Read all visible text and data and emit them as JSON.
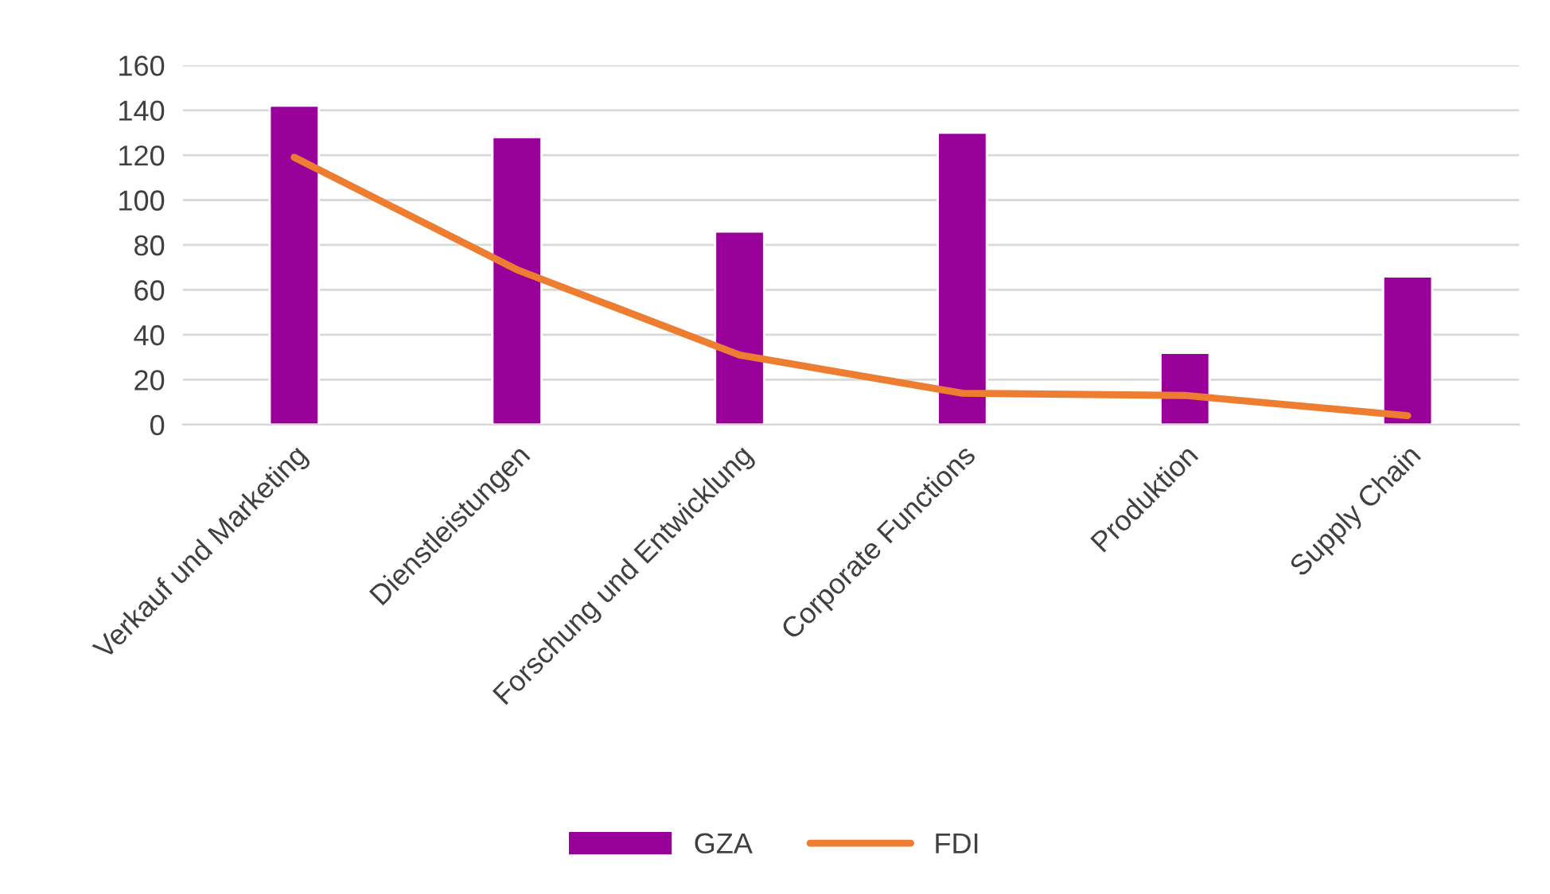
{
  "chart_data": {
    "type": "bar",
    "categories": [
      "Verkauf und Marketing",
      "Dienstleistungen",
      "Forschung und Entwicklung",
      "Corporate Functions",
      "Produktion",
      "Supply Chain"
    ],
    "series": [
      {
        "name": "GZA",
        "color": "#990099",
        "values": [
          142,
          128,
          86,
          130,
          32,
          66
        ]
      },
      {
        "name": "FDI",
        "type": "line",
        "color": "#ed7d31",
        "values": [
          119,
          69,
          31,
          14,
          13,
          4
        ]
      }
    ],
    "ylim": [
      0,
      160
    ],
    "yticks": [
      0,
      20,
      40,
      60,
      80,
      100,
      120,
      140,
      160
    ],
    "grid": "y",
    "legend": "bottom",
    "marker": "none",
    "line_style": "solid"
  }
}
